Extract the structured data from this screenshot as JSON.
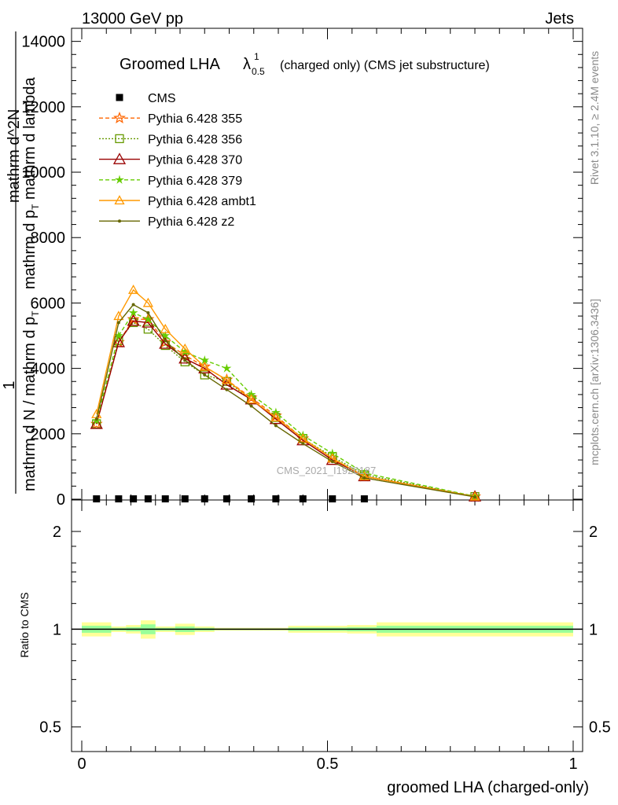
{
  "header": {
    "left": "13000 GeV pp",
    "right": "Jets"
  },
  "side_labels": {
    "rivet": "Rivet 3.1.10, ≥ 2.4M events",
    "mcplots": "mcplots.cern.ch [arXiv:1306.3436]"
  },
  "watermark": "CMS_2021_I1920187",
  "colors": {
    "cms": "#000000",
    "p355": "#ff6600",
    "p356": "#669900",
    "p370": "#990000",
    "p379": "#66cc00",
    "ambt1": "#ff9900",
    "z2": "#666600",
    "band_outer": "#ffff99",
    "band_inner": "#99ff99"
  },
  "chart_data": [
    {
      "type": "line",
      "title_main": "Groomed LHA",
      "title_symbol": "λ",
      "title_sup": "1",
      "title_sub": "0.5",
      "title_rest": "(charged only) (CMS jet substructure)",
      "ylabel_top": "1",
      "ylabel_num": "mathrm d N / mathrm d p",
      "ylabel_num_sub": "T",
      "ylabel_right": "mathrm d^2N",
      "ylabel_den": "mathrm d p",
      "ylabel_den_sub": "T",
      "ylabel_den_rest": "mathrm d lambda",
      "ylim": [
        0,
        14400
      ],
      "yticks": [
        0,
        2000,
        4000,
        6000,
        8000,
        10000,
        12000,
        14000
      ],
      "ytick_labels": [
        "0",
        "2000",
        "4000",
        "6000",
        "8000",
        "10000",
        "12000",
        "14000"
      ],
      "legend_position": "top-left",
      "x": [
        0.03,
        0.075,
        0.105,
        0.135,
        0.17,
        0.21,
        0.25,
        0.295,
        0.345,
        0.395,
        0.45,
        0.51,
        0.575,
        0.8
      ],
      "series": [
        {
          "name": "CMS",
          "style": "cms-marker",
          "values": [
            10,
            10,
            10,
            10,
            10,
            10,
            10,
            10,
            10,
            10,
            10,
            10,
            10,
            null
          ]
        },
        {
          "name": "Pythia 6.428 355",
          "style": "p355",
          "values": [
            2300,
            4800,
            5500,
            5500,
            4800,
            4400,
            4050,
            3650,
            3100,
            2550,
            1850,
            1250,
            700,
            80
          ]
        },
        {
          "name": "Pythia 6.428 356",
          "style": "p356",
          "values": [
            2300,
            4850,
            5400,
            5200,
            4700,
            4200,
            3800,
            3600,
            3050,
            2500,
            1850,
            1300,
            750,
            80
          ]
        },
        {
          "name": "Pythia 6.428 370",
          "style": "p370",
          "values": [
            2300,
            4800,
            5450,
            5400,
            4750,
            4300,
            4000,
            3500,
            3050,
            2450,
            1800,
            1200,
            700,
            80
          ]
        },
        {
          "name": "Pythia 6.428 379",
          "style": "p379",
          "values": [
            2400,
            5000,
            5700,
            5500,
            5000,
            4500,
            4250,
            4000,
            3200,
            2650,
            1950,
            1400,
            800,
            90
          ]
        },
        {
          "name": "Pythia 6.428 ambt1",
          "style": "ambt1",
          "values": [
            2600,
            5600,
            6400,
            6000,
            5200,
            4600,
            4050,
            3650,
            3050,
            2500,
            1850,
            1250,
            700,
            80
          ]
        },
        {
          "name": "Pythia 6.428 z2",
          "style": "z2",
          "values": [
            2450,
            5400,
            5950,
            5700,
            4850,
            4250,
            3800,
            3350,
            2850,
            2250,
            1700,
            1150,
            650,
            70
          ]
        }
      ]
    },
    {
      "type": "area",
      "ylabel": "Ratio to CMS",
      "xlabel": "groomed LHA (charged-only)",
      "xlim": [
        0,
        1
      ],
      "xticks": [
        0,
        0.5,
        1
      ],
      "xtick_labels": [
        "0",
        "0.5",
        "1"
      ],
      "ylim": [
        0.42,
        2.5
      ],
      "ylog": true,
      "yticks": [
        0.5,
        1,
        2
      ],
      "ytick_labels": [
        "0.5",
        "1",
        "2"
      ],
      "reference": 1,
      "bins": [
        {
          "lo": 0.0,
          "hi": 0.06,
          "outer": 0.05,
          "inner": 0.025
        },
        {
          "lo": 0.06,
          "hi": 0.09,
          "outer": 0.02,
          "inner": 0.01
        },
        {
          "lo": 0.09,
          "hi": 0.12,
          "outer": 0.03,
          "inner": 0.015
        },
        {
          "lo": 0.12,
          "hi": 0.15,
          "outer": 0.065,
          "inner": 0.035
        },
        {
          "lo": 0.15,
          "hi": 0.19,
          "outer": 0.02,
          "inner": 0.01
        },
        {
          "lo": 0.19,
          "hi": 0.23,
          "outer": 0.04,
          "inner": 0.02
        },
        {
          "lo": 0.23,
          "hi": 0.27,
          "outer": 0.02,
          "inner": 0.01
        },
        {
          "lo": 0.27,
          "hi": 0.32,
          "outer": 0.01,
          "inner": 0.005
        },
        {
          "lo": 0.32,
          "hi": 0.37,
          "outer": 0.01,
          "inner": 0.005
        },
        {
          "lo": 0.37,
          "hi": 0.42,
          "outer": 0.01,
          "inner": 0.005
        },
        {
          "lo": 0.42,
          "hi": 0.48,
          "outer": 0.025,
          "inner": 0.012
        },
        {
          "lo": 0.48,
          "hi": 0.54,
          "outer": 0.025,
          "inner": 0.012
        },
        {
          "lo": 0.54,
          "hi": 0.6,
          "outer": 0.03,
          "inner": 0.015
        },
        {
          "lo": 0.6,
          "hi": 1.0,
          "outer": 0.05,
          "inner": 0.025
        }
      ]
    }
  ]
}
